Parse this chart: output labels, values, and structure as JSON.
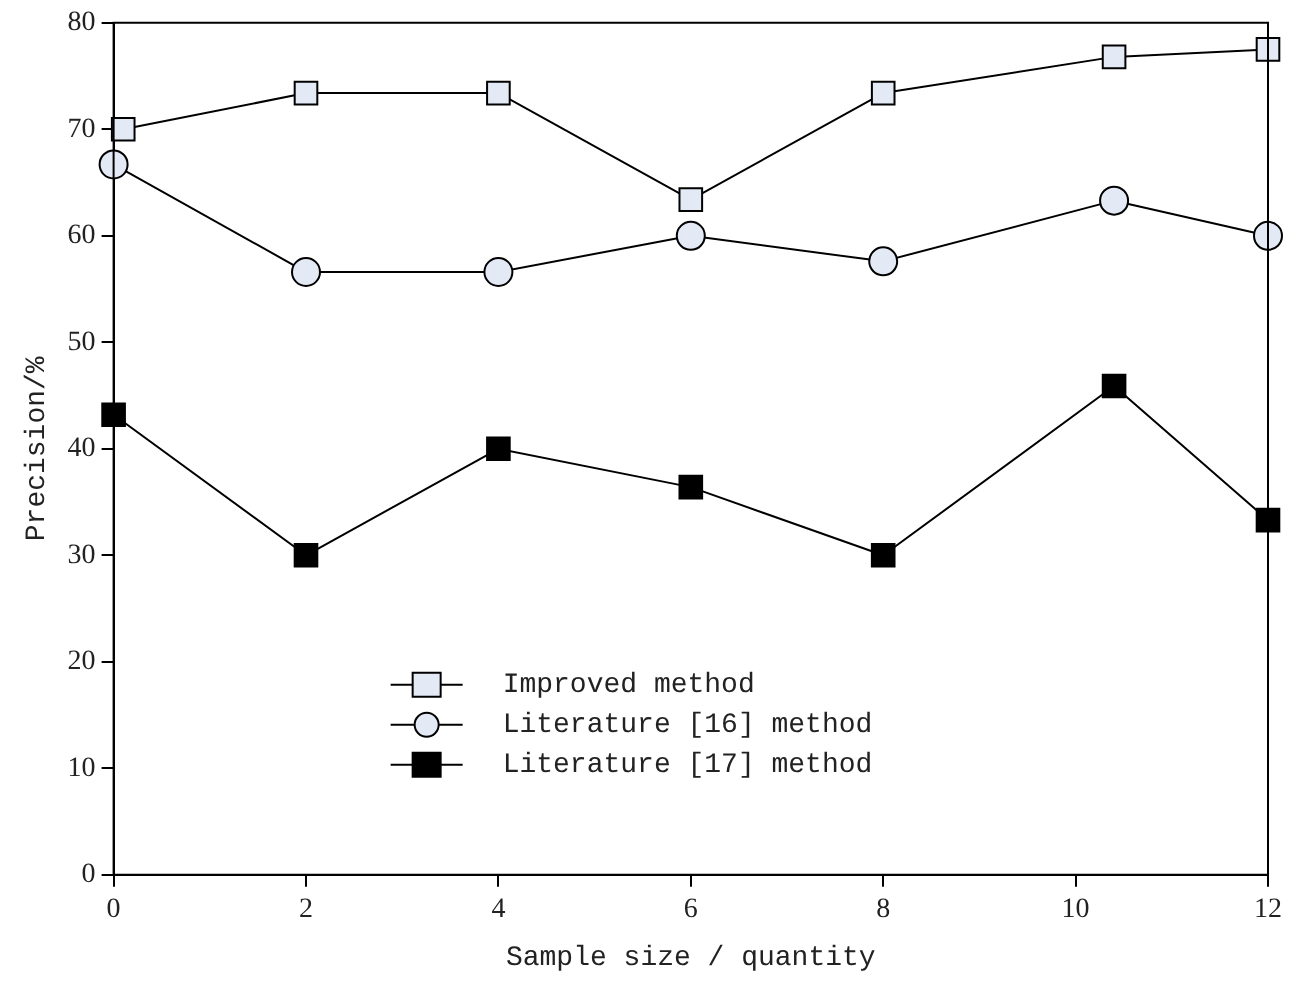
{
  "chart_data": {
    "type": "line",
    "xlabel": "Sample size / quantity",
    "ylabel": "Precision/%",
    "xlim": [
      0,
      12
    ],
    "xticks": [
      0,
      2,
      4,
      6,
      8,
      10,
      12
    ],
    "ylim": [
      0,
      80
    ],
    "yticks": [
      0,
      10,
      20,
      30,
      40,
      50,
      60,
      70,
      80
    ],
    "grid": false,
    "legend": "bottom",
    "line_style": "solid",
    "series": [
      {
        "name": "Improved method",
        "color": "#e3eaf5",
        "marker": "square",
        "x": [
          0.1,
          2,
          4,
          6,
          8,
          10.4,
          12
        ],
        "values": [
          70,
          73.4,
          73.4,
          63.4,
          73.4,
          76.8,
          77.5
        ]
      },
      {
        "name": "Literature [16] method",
        "color": "#e3eaf5",
        "marker": "circle",
        "x": [
          0,
          2,
          4,
          6,
          8,
          10.4,
          12
        ],
        "values": [
          66.7,
          56.6,
          56.6,
          60,
          57.6,
          63.3,
          60
        ]
      },
      {
        "name": "Literature [17] method",
        "color": "#000000",
        "marker": "square",
        "x": [
          0,
          2,
          4,
          6,
          8,
          10.4,
          12
        ],
        "values": [
          43.2,
          30,
          40,
          36.4,
          30,
          45.9,
          33.3
        ]
      }
    ]
  }
}
